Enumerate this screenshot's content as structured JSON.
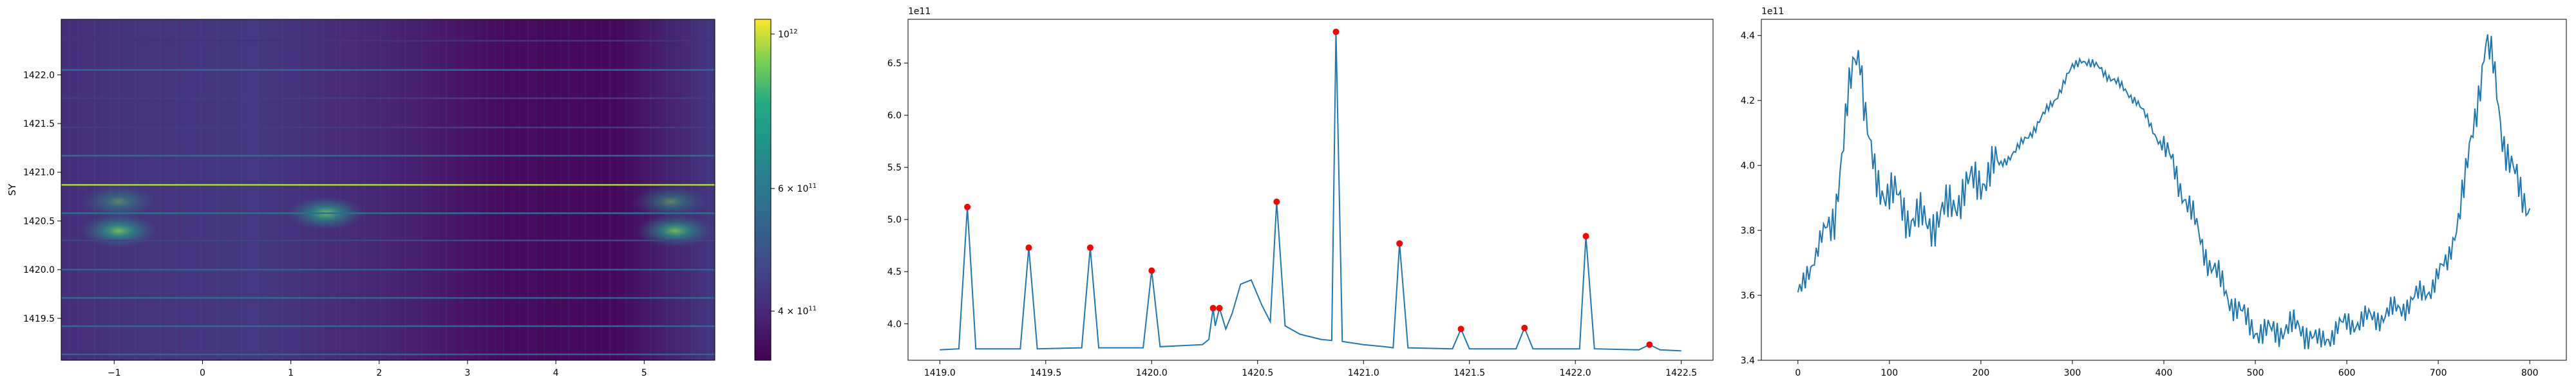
{
  "chart_data": [
    {
      "type": "heatmap",
      "xlabel": "",
      "ylabel": "SY",
      "xlim": [
        -1.6,
        5.8
      ],
      "ylim": [
        1419.07,
        1422.57
      ],
      "xticks": [
        {
          "value": -1,
          "label": "−1"
        },
        {
          "value": 0,
          "label": "0"
        },
        {
          "value": 1,
          "label": "1"
        },
        {
          "value": 2,
          "label": "2"
        },
        {
          "value": 3,
          "label": "3"
        },
        {
          "value": 4,
          "label": "4"
        },
        {
          "value": 5,
          "label": "5"
        }
      ],
      "yticks": [
        {
          "value": 1419.5,
          "label": "1419.5"
        },
        {
          "value": 1420.0,
          "label": "1420.0"
        },
        {
          "value": 1420.5,
          "label": "1420.5"
        },
        {
          "value": 1421.0,
          "label": "1421.0"
        },
        {
          "value": 1421.5,
          "label": "1421.5"
        },
        {
          "value": 1422.0,
          "label": "1422.0"
        }
      ],
      "colormap": "viridis",
      "colorbar": {
        "scale": "log",
        "range": [
          340000000000.0,
          1050000000000.0
        ],
        "ticks": [
          {
            "value": 400000000000.0,
            "base": "4 × 10",
            "exp": "11"
          },
          {
            "value": 600000000000.0,
            "base": "6 × 10",
            "exp": "11"
          },
          {
            "value": 1000000000000.0,
            "base": "10",
            "exp": "12"
          }
        ]
      },
      "horizontal_lines": [
        {
          "y": 1419.13,
          "level": 0.38
        },
        {
          "y": 1419.42,
          "level": 0.42
        },
        {
          "y": 1419.71,
          "level": 0.42
        },
        {
          "y": 1420.0,
          "level": 0.38
        },
        {
          "y": 1420.3,
          "level": 0.25
        },
        {
          "y": 1420.58,
          "level": 0.45
        },
        {
          "y": 1420.87,
          "level": 0.92
        },
        {
          "y": 1421.17,
          "level": 0.42
        },
        {
          "y": 1421.46,
          "level": 0.22
        },
        {
          "y": 1421.76,
          "level": 0.22
        },
        {
          "y": 1422.05,
          "level": 0.42
        },
        {
          "y": 1422.35,
          "level": 0.18
        }
      ],
      "hotspots": [
        {
          "x": -0.95,
          "y": 1420.4,
          "level": 0.85
        },
        {
          "x": -0.95,
          "y": 1420.7,
          "level": 0.5
        },
        {
          "x": 1.4,
          "y": 1420.58,
          "level": 0.85
        },
        {
          "x": 5.35,
          "y": 1420.4,
          "level": 0.85
        },
        {
          "x": 5.3,
          "y": 1420.7,
          "level": 0.55
        }
      ]
    },
    {
      "type": "line",
      "offset_label": "1e11",
      "xlim": [
        1418.85,
        1422.65
      ],
      "ylim": [
        3.65,
        6.92
      ],
      "xticks": [
        {
          "value": 1419.0,
          "label": "1419.0"
        },
        {
          "value": 1419.5,
          "label": "1419.5"
        },
        {
          "value": 1420.0,
          "label": "1420.0"
        },
        {
          "value": 1420.5,
          "label": "1420.5"
        },
        {
          "value": 1421.0,
          "label": "1421.0"
        },
        {
          "value": 1421.5,
          "label": "1421.5"
        },
        {
          "value": 1422.0,
          "label": "1422.0"
        },
        {
          "value": 1422.5,
          "label": "1422.5"
        }
      ],
      "yticks": [
        {
          "value": 4.0,
          "label": "4.0"
        },
        {
          "value": 4.5,
          "label": "4.5"
        },
        {
          "value": 5.0,
          "label": "5.0"
        },
        {
          "value": 5.5,
          "label": "5.5"
        },
        {
          "value": 6.0,
          "label": "6.0"
        },
        {
          "value": 6.5,
          "label": "6.5"
        }
      ],
      "line_color": "#1f77b4",
      "marker_color": "#ff0000",
      "line": [
        [
          1419.0,
          3.75
        ],
        [
          1419.09,
          3.76
        ],
        [
          1419.13,
          5.12
        ],
        [
          1419.17,
          3.76
        ],
        [
          1419.38,
          3.76
        ],
        [
          1419.42,
          4.73
        ],
        [
          1419.46,
          3.76
        ],
        [
          1419.67,
          3.77
        ],
        [
          1419.71,
          4.73
        ],
        [
          1419.75,
          3.77
        ],
        [
          1419.96,
          3.77
        ],
        [
          1420.0,
          4.51
        ],
        [
          1420.04,
          3.78
        ],
        [
          1420.24,
          3.8
        ],
        [
          1420.27,
          3.85
        ],
        [
          1420.29,
          4.15
        ],
        [
          1420.3,
          3.98
        ],
        [
          1420.32,
          4.15
        ],
        [
          1420.35,
          3.95
        ],
        [
          1420.38,
          4.1
        ],
        [
          1420.42,
          4.38
        ],
        [
          1420.47,
          4.42
        ],
        [
          1420.52,
          4.18
        ],
        [
          1420.56,
          4.02
        ],
        [
          1420.59,
          5.17
        ],
        [
          1420.63,
          3.98
        ],
        [
          1420.7,
          3.9
        ],
        [
          1420.8,
          3.85
        ],
        [
          1420.85,
          3.84
        ],
        [
          1420.87,
          6.8
        ],
        [
          1420.9,
          3.83
        ],
        [
          1421.0,
          3.8
        ],
        [
          1421.1,
          3.78
        ],
        [
          1421.14,
          3.77
        ],
        [
          1421.17,
          4.77
        ],
        [
          1421.21,
          3.77
        ],
        [
          1421.42,
          3.76
        ],
        [
          1421.46,
          3.95
        ],
        [
          1421.5,
          3.76
        ],
        [
          1421.72,
          3.76
        ],
        [
          1421.76,
          3.96
        ],
        [
          1421.8,
          3.76
        ],
        [
          1422.02,
          3.76
        ],
        [
          1422.05,
          4.84
        ],
        [
          1422.09,
          3.76
        ],
        [
          1422.3,
          3.75
        ],
        [
          1422.35,
          3.8
        ],
        [
          1422.4,
          3.75
        ],
        [
          1422.5,
          3.74
        ]
      ],
      "peaks": [
        [
          1419.13,
          5.12
        ],
        [
          1419.42,
          4.73
        ],
        [
          1419.71,
          4.73
        ],
        [
          1420.0,
          4.51
        ],
        [
          1420.29,
          4.15
        ],
        [
          1420.32,
          4.15
        ],
        [
          1420.59,
          5.17
        ],
        [
          1420.87,
          6.8
        ],
        [
          1421.17,
          4.77
        ],
        [
          1421.46,
          3.95
        ],
        [
          1421.76,
          3.96
        ],
        [
          1422.05,
          4.84
        ],
        [
          1422.35,
          3.8
        ]
      ]
    },
    {
      "type": "line",
      "offset_label": "1e11",
      "xlim": [
        -40,
        840
      ],
      "ylim": [
        3.4,
        4.45
      ],
      "xticks": [
        {
          "value": 0,
          "label": "0"
        },
        {
          "value": 100,
          "label": "100"
        },
        {
          "value": 200,
          "label": "200"
        },
        {
          "value": 300,
          "label": "300"
        },
        {
          "value": 400,
          "label": "400"
        },
        {
          "value": 500,
          "label": "500"
        },
        {
          "value": 600,
          "label": "600"
        },
        {
          "value": 700,
          "label": "700"
        },
        {
          "value": 800,
          "label": "800"
        }
      ],
      "yticks": [
        {
          "value": 3.4,
          "label": "3.4"
        },
        {
          "value": 3.6,
          "label": "3.6"
        },
        {
          "value": 3.8,
          "label": "3.8"
        },
        {
          "value": 4.0,
          "label": "4.0"
        },
        {
          "value": 4.2,
          "label": "4.2"
        },
        {
          "value": 4.4,
          "label": "4.4"
        }
      ],
      "line_color": "#1f77b4",
      "line": [
        [
          0,
          3.59
        ],
        [
          10,
          3.68
        ],
        [
          20,
          3.72
        ],
        [
          30,
          3.8
        ],
        [
          40,
          3.86
        ],
        [
          50,
          4.05
        ],
        [
          55,
          4.2
        ],
        [
          62,
          4.35
        ],
        [
          68,
          4.36
        ],
        [
          72,
          4.2
        ],
        [
          78,
          4.05
        ],
        [
          85,
          3.95
        ],
        [
          100,
          3.92
        ],
        [
          120,
          3.85
        ],
        [
          140,
          3.82
        ],
        [
          160,
          3.85
        ],
        [
          180,
          3.92
        ],
        [
          200,
          3.96
        ],
        [
          220,
          4.0
        ],
        [
          240,
          4.05
        ],
        [
          260,
          4.12
        ],
        [
          280,
          4.2
        ],
        [
          300,
          4.3
        ],
        [
          310,
          4.33
        ],
        [
          320,
          4.31
        ],
        [
          330,
          4.3
        ],
        [
          350,
          4.25
        ],
        [
          370,
          4.2
        ],
        [
          390,
          4.1
        ],
        [
          410,
          4.0
        ],
        [
          430,
          3.85
        ],
        [
          450,
          3.7
        ],
        [
          470,
          3.6
        ],
        [
          490,
          3.52
        ],
        [
          510,
          3.48
        ],
        [
          530,
          3.5
        ],
        [
          550,
          3.5
        ],
        [
          560,
          3.48
        ],
        [
          570,
          3.45
        ],
        [
          590,
          3.5
        ],
        [
          610,
          3.52
        ],
        [
          630,
          3.53
        ],
        [
          650,
          3.55
        ],
        [
          670,
          3.58
        ],
        [
          690,
          3.62
        ],
        [
          710,
          3.7
        ],
        [
          730,
          3.95
        ],
        [
          745,
          4.25
        ],
        [
          752,
          4.38
        ],
        [
          760,
          4.3
        ],
        [
          770,
          4.1
        ],
        [
          780,
          4.0
        ],
        [
          790,
          3.9
        ],
        [
          800,
          3.88
        ]
      ]
    }
  ]
}
